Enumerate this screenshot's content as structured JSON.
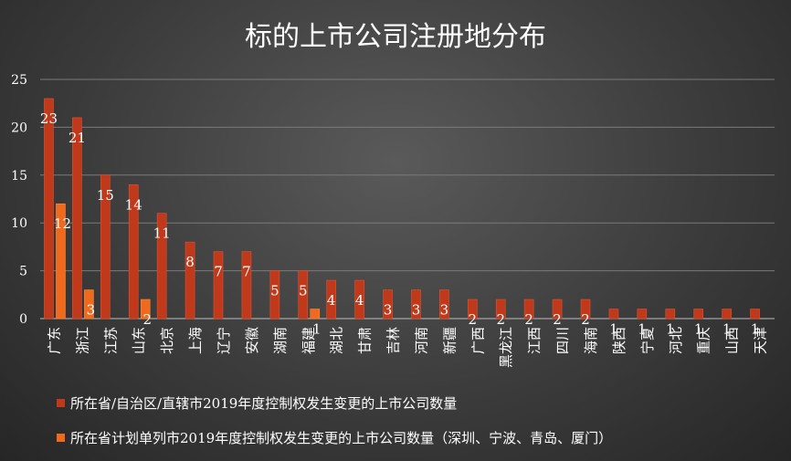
{
  "chart_data": {
    "type": "bar",
    "title": "标的上市公司注册地分布",
    "categories": [
      "广东",
      "浙江",
      "江苏",
      "山东",
      "北京",
      "上海",
      "辽宁",
      "安徽",
      "湖南",
      "福建",
      "湖北",
      "甘肃",
      "吉林",
      "河南",
      "新疆",
      "广西",
      "黑龙江",
      "江西",
      "四川",
      "海南",
      "陕西",
      "宁夏",
      "河北",
      "重庆",
      "山西",
      "天津"
    ],
    "series": [
      {
        "name": "所在省/自治区/直辖市2019年度控制权发生变更的上市公司数量",
        "color": "#c0391b",
        "values": [
          23,
          21,
          15,
          14,
          11,
          8,
          7,
          7,
          5,
          5,
          4,
          4,
          3,
          3,
          3,
          2,
          2,
          2,
          2,
          2,
          1,
          1,
          1,
          1,
          1,
          1
        ]
      },
      {
        "name": "所在省计划单列市2019年度控制权发生变更的上市公司数量（深圳、宁波、青岛、厦门）",
        "color": "#f06a1e",
        "values": [
          12,
          3,
          null,
          2,
          null,
          null,
          null,
          null,
          null,
          1,
          null,
          null,
          null,
          null,
          null,
          null,
          null,
          null,
          null,
          null,
          null,
          null,
          null,
          null,
          null,
          null
        ]
      }
    ],
    "yticks": [
      0,
      5,
      10,
      15,
      20,
      25
    ],
    "ylim": [
      0,
      25
    ],
    "grid": true,
    "legend_position": "bottom"
  }
}
